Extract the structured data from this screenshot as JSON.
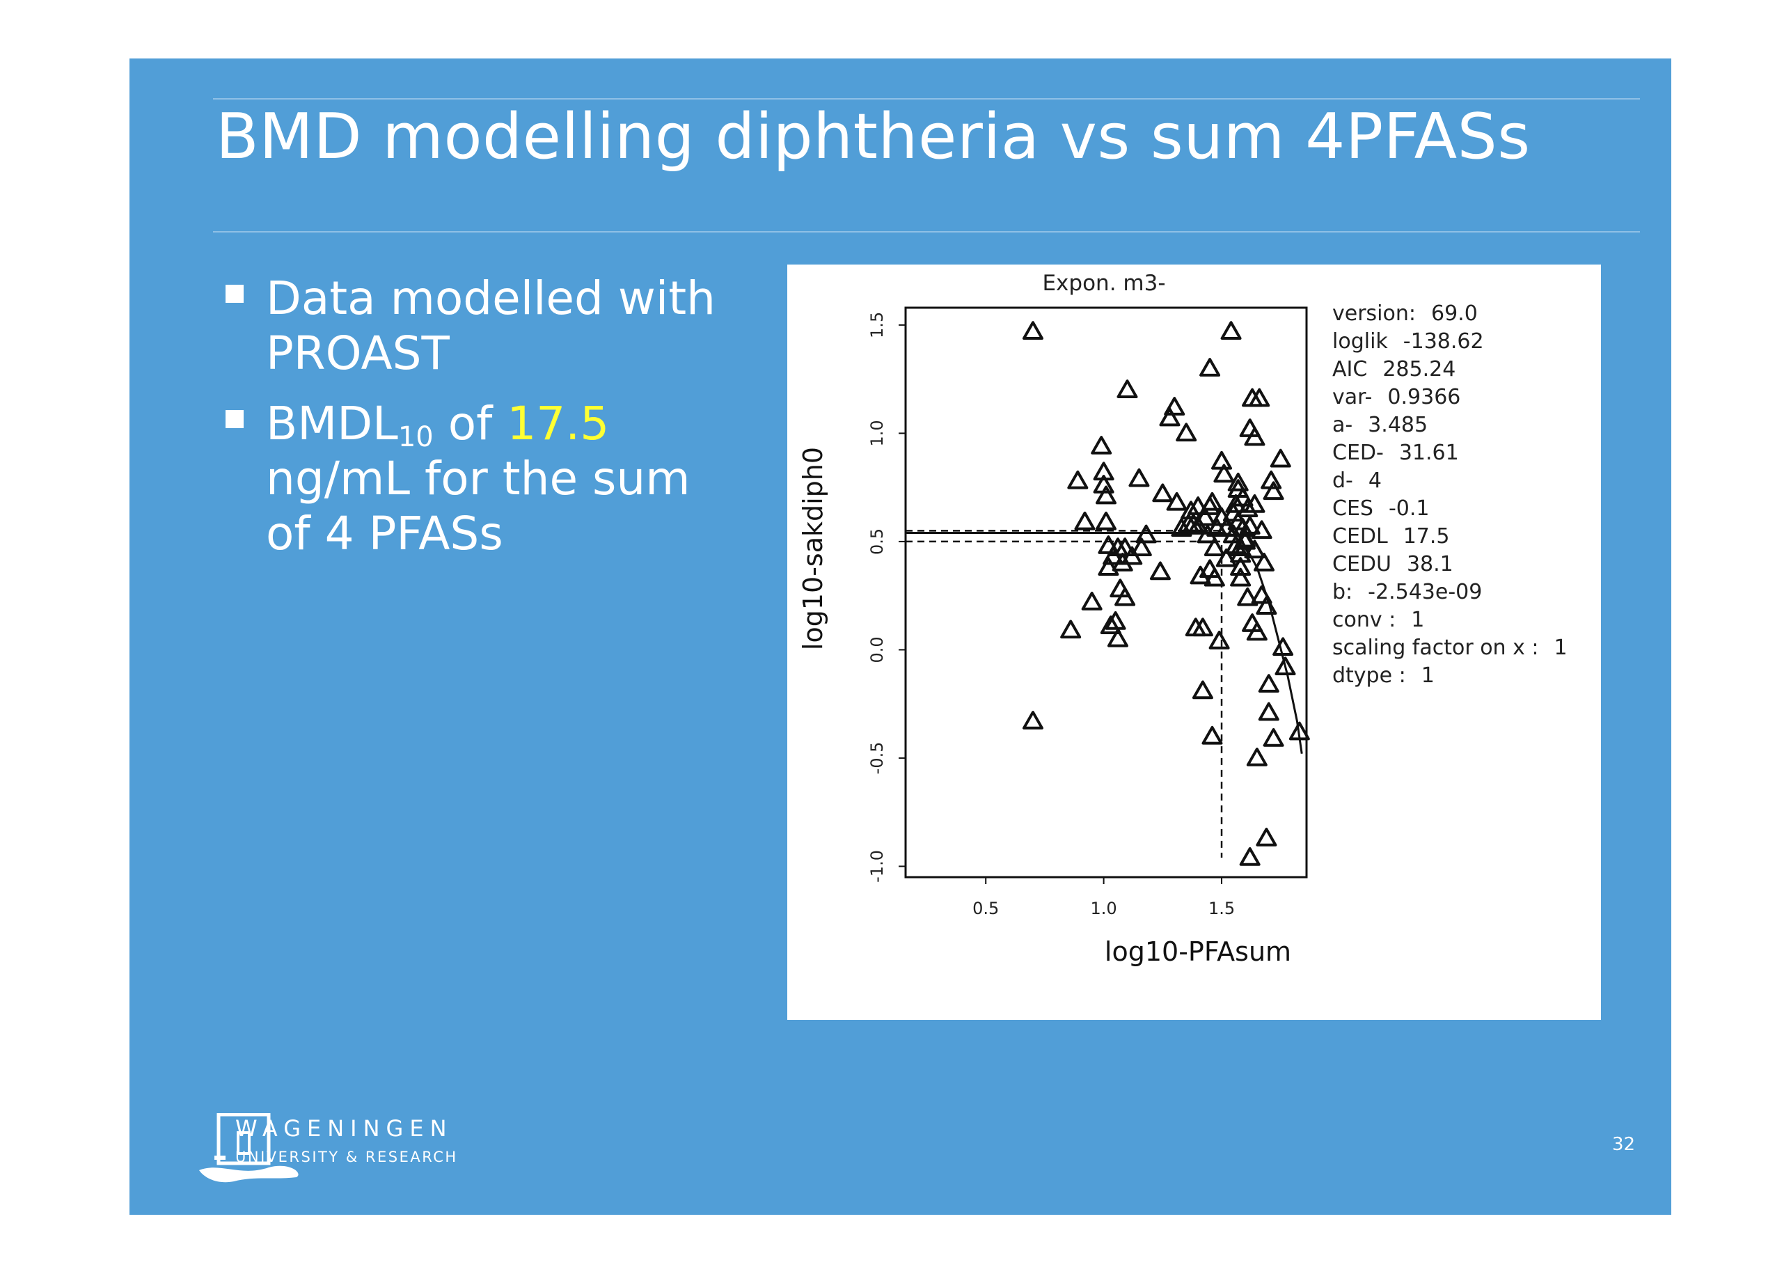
{
  "slide": {
    "title": "BMD modelling diphtheria vs sum 4PFASs",
    "bullets": [
      {
        "line1": "Data modelled with",
        "line2": "PROAST"
      },
      {
        "prefix": "BMDL",
        "sub": "10",
        "mid": " of ",
        "highlight": "17.5",
        "line2": "ng/mL for the sum",
        "line3": "of 4 PFASs"
      }
    ],
    "page_number": "32",
    "logo": {
      "name": "WAGENINGEN",
      "subtitle": "UNIVERSITY & RESEARCH"
    },
    "colors": {
      "background": "#519ed7",
      "text": "#ffffff",
      "highlight": "#ffff33"
    }
  },
  "chart_data": {
    "type": "scatter",
    "title": "Expon. m3-",
    "xlabel": "log10-PFAsum",
    "ylabel": "log10-sakdiph0",
    "xlim": [
      0.16,
      1.86
    ],
    "ylim": [
      -1.05,
      1.58
    ],
    "xticks": [
      "0.5",
      "1.0",
      "1.5"
    ],
    "yticks": [
      "-1.0",
      "-0.5",
      "0.0",
      "0.5",
      "1.0",
      "1.5"
    ],
    "marker": "triangle",
    "points": [
      [
        0.7,
        1.47
      ],
      [
        0.7,
        -0.33
      ],
      [
        0.86,
        0.09
      ],
      [
        0.89,
        0.78
      ],
      [
        0.92,
        0.59
      ],
      [
        0.95,
        0.22
      ],
      [
        0.99,
        0.94
      ],
      [
        1.0,
        0.82
      ],
      [
        1.0,
        0.76
      ],
      [
        1.01,
        0.71
      ],
      [
        1.01,
        0.59
      ],
      [
        1.02,
        0.48
      ],
      [
        1.02,
        0.38
      ],
      [
        1.03,
        0.11
      ],
      [
        1.04,
        0.43
      ],
      [
        1.05,
        0.13
      ],
      [
        1.06,
        0.05
      ],
      [
        1.06,
        0.47
      ],
      [
        1.07,
        0.28
      ],
      [
        1.08,
        0.4
      ],
      [
        1.09,
        0.24
      ],
      [
        1.09,
        0.47
      ],
      [
        1.1,
        1.2
      ],
      [
        1.12,
        0.43
      ],
      [
        1.15,
        0.79
      ],
      [
        1.16,
        0.47
      ],
      [
        1.18,
        0.53
      ],
      [
        1.24,
        0.36
      ],
      [
        1.25,
        0.72
      ],
      [
        1.28,
        1.07
      ],
      [
        1.3,
        1.12
      ],
      [
        1.31,
        0.68
      ],
      [
        1.33,
        0.56
      ],
      [
        1.35,
        1.0
      ],
      [
        1.36,
        0.58
      ],
      [
        1.37,
        0.64
      ],
      [
        1.38,
        0.58
      ],
      [
        1.39,
        0.1
      ],
      [
        1.4,
        0.57
      ],
      [
        1.4,
        0.66
      ],
      [
        1.41,
        0.34
      ],
      [
        1.42,
        -0.19
      ],
      [
        1.42,
        0.1
      ],
      [
        1.43,
        0.61
      ],
      [
        1.44,
        0.53
      ],
      [
        1.45,
        0.66
      ],
      [
        1.45,
        0.37
      ],
      [
        1.45,
        1.3
      ],
      [
        1.46,
        -0.4
      ],
      [
        1.46,
        0.68
      ],
      [
        1.47,
        0.47
      ],
      [
        1.47,
        0.33
      ],
      [
        1.48,
        0.56
      ],
      [
        1.49,
        0.04
      ],
      [
        1.5,
        0.87
      ],
      [
        1.5,
        0.61
      ],
      [
        1.51,
        0.81
      ],
      [
        1.52,
        0.56
      ],
      [
        1.52,
        0.42
      ],
      [
        1.54,
        1.47
      ],
      [
        1.55,
        0.63
      ],
      [
        1.55,
        0.53
      ],
      [
        1.56,
        0.67
      ],
      [
        1.56,
        0.48
      ],
      [
        1.57,
        0.77
      ],
      [
        1.57,
        0.74
      ],
      [
        1.57,
        0.59
      ],
      [
        1.58,
        0.38
      ],
      [
        1.58,
        0.47
      ],
      [
        1.58,
        0.44
      ],
      [
        1.58,
        0.33
      ],
      [
        1.59,
        0.7
      ],
      [
        1.59,
        0.56
      ],
      [
        1.6,
        0.51
      ],
      [
        1.6,
        0.5
      ],
      [
        1.61,
        0.65
      ],
      [
        1.61,
        0.24
      ],
      [
        1.62,
        1.02
      ],
      [
        1.62,
        0.57
      ],
      [
        1.62,
        -0.96
      ],
      [
        1.63,
        1.16
      ],
      [
        1.63,
        0.12
      ],
      [
        1.64,
        0.98
      ],
      [
        1.64,
        0.46
      ],
      [
        1.64,
        0.67
      ],
      [
        1.65,
        0.08
      ],
      [
        1.65,
        -0.5
      ],
      [
        1.66,
        1.16
      ],
      [
        1.67,
        0.55
      ],
      [
        1.67,
        0.25
      ],
      [
        1.68,
        0.4
      ],
      [
        1.69,
        -0.87
      ],
      [
        1.69,
        0.2
      ],
      [
        1.7,
        -0.16
      ],
      [
        1.7,
        -0.29
      ],
      [
        1.71,
        0.78
      ],
      [
        1.72,
        0.73
      ],
      [
        1.72,
        -0.41
      ],
      [
        1.75,
        0.88
      ],
      [
        1.76,
        0.01
      ],
      [
        1.77,
        -0.08
      ],
      [
        1.83,
        -0.38
      ]
    ],
    "fitted_curve": [
      [
        0.16,
        0.54
      ],
      [
        1.5,
        0.54
      ],
      [
        1.55,
        0.53
      ],
      [
        1.6,
        0.48
      ],
      [
        1.65,
        0.38
      ],
      [
        1.7,
        0.22
      ],
      [
        1.74,
        0.05
      ],
      [
        1.78,
        -0.12
      ],
      [
        1.82,
        -0.33
      ],
      [
        1.84,
        -0.48
      ]
    ],
    "ced_lines": [
      {
        "style": "dashed",
        "points": [
          [
            0.16,
            0.55
          ],
          [
            1.5,
            0.55
          ]
        ]
      },
      {
        "style": "dashed",
        "points": [
          [
            0.16,
            0.5
          ],
          [
            1.5,
            0.5
          ],
          [
            1.5,
            -0.96
          ]
        ]
      }
    ],
    "annotations": [
      {
        "key": "version:",
        "value": "69.0"
      },
      {
        "key": "loglik",
        "value": "-138.62"
      },
      {
        "key": "AIC",
        "value": "285.24"
      },
      {
        "key": "var-",
        "value": "0.9366"
      },
      {
        "key": "a-",
        "value": "3.485"
      },
      {
        "key": "CED-",
        "value": "31.61"
      },
      {
        "key": "d-",
        "value": "4"
      },
      {
        "key": "CES",
        "value": "-0.1"
      },
      {
        "key": "CEDL",
        "value": "17.5"
      },
      {
        "key": "CEDU",
        "value": "38.1"
      },
      {
        "key": "b:",
        "value": "-2.543e-09"
      },
      {
        "key": "conv :",
        "value": "1"
      },
      {
        "key": "scaling factor on x :",
        "value": "1"
      },
      {
        "key": "dtype :",
        "value": "1"
      }
    ]
  }
}
